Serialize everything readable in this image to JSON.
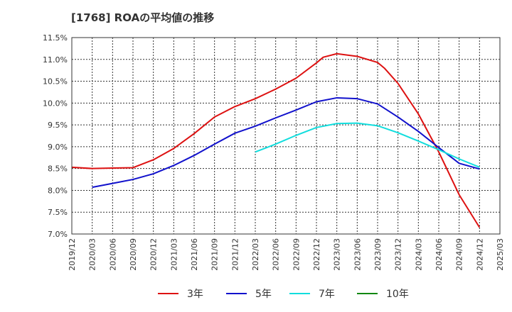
{
  "chart_data": {
    "type": "line",
    "title": "[1768]  ROAの平均値の推移",
    "xlabel": "",
    "ylabel": "",
    "ylim": [
      7.0,
      11.5
    ],
    "y_ticks": [
      "11.5%",
      "11.0%",
      "10.5%",
      "10.0%",
      "9.5%",
      "9.0%",
      "8.5%",
      "8.0%",
      "7.5%",
      "7.0%"
    ],
    "x_ticks": [
      "2019/12",
      "2020/03",
      "2020/06",
      "2020/09",
      "2020/12",
      "2021/03",
      "2021/06",
      "2021/09",
      "2021/12",
      "2022/03",
      "2022/06",
      "2022/09",
      "2022/12",
      "2023/03",
      "2023/06",
      "2023/09",
      "2023/12",
      "2024/03",
      "2024/06",
      "2024/09",
      "2024/12",
      "2025/03"
    ],
    "grid": true,
    "legend_position": "bottom",
    "series": [
      {
        "name": "3年",
        "color": "#dd1111",
        "x": [
          "2019/12",
          "2020/03",
          "2020/06",
          "2020/09",
          "2020/12",
          "2021/03",
          "2021/06",
          "2021/09",
          "2021/12",
          "2022/03",
          "2022/06",
          "2022/09",
          "2022/12",
          "2023/01",
          "2023/03",
          "2023/06",
          "2023/09",
          "2023/10",
          "2023/12",
          "2024/03",
          "2024/06",
          "2024/09",
          "2024/12"
        ],
        "values": [
          8.53,
          8.5,
          8.51,
          8.52,
          8.7,
          8.96,
          9.3,
          9.68,
          9.92,
          10.1,
          10.32,
          10.57,
          10.92,
          11.05,
          11.13,
          11.07,
          10.93,
          10.8,
          10.45,
          9.75,
          8.88,
          7.9,
          7.15
        ]
      },
      {
        "name": "5年",
        "color": "#1111cc",
        "x": [
          "2020/03",
          "2020/06",
          "2020/09",
          "2020/12",
          "2021/03",
          "2021/06",
          "2021/09",
          "2021/12",
          "2022/03",
          "2022/06",
          "2022/09",
          "2022/12",
          "2023/03",
          "2023/06",
          "2023/09",
          "2023/12",
          "2024/03",
          "2024/06",
          "2024/09",
          "2024/12"
        ],
        "values": [
          8.07,
          8.16,
          8.25,
          8.38,
          8.57,
          8.8,
          9.06,
          9.31,
          9.47,
          9.66,
          9.84,
          10.03,
          10.12,
          10.1,
          9.98,
          9.68,
          9.35,
          8.98,
          8.62,
          8.49
        ]
      },
      {
        "name": "7年",
        "color": "#11dddd",
        "x": [
          "2022/03",
          "2022/06",
          "2022/09",
          "2022/12",
          "2023/03",
          "2023/06",
          "2023/09",
          "2023/12",
          "2024/03",
          "2024/06",
          "2024/09",
          "2024/12"
        ],
        "values": [
          8.88,
          9.06,
          9.26,
          9.44,
          9.53,
          9.54,
          9.48,
          9.32,
          9.13,
          8.93,
          8.72,
          8.53
        ]
      },
      {
        "name": "10年",
        "color": "#118811",
        "x": [],
        "values": []
      }
    ]
  }
}
